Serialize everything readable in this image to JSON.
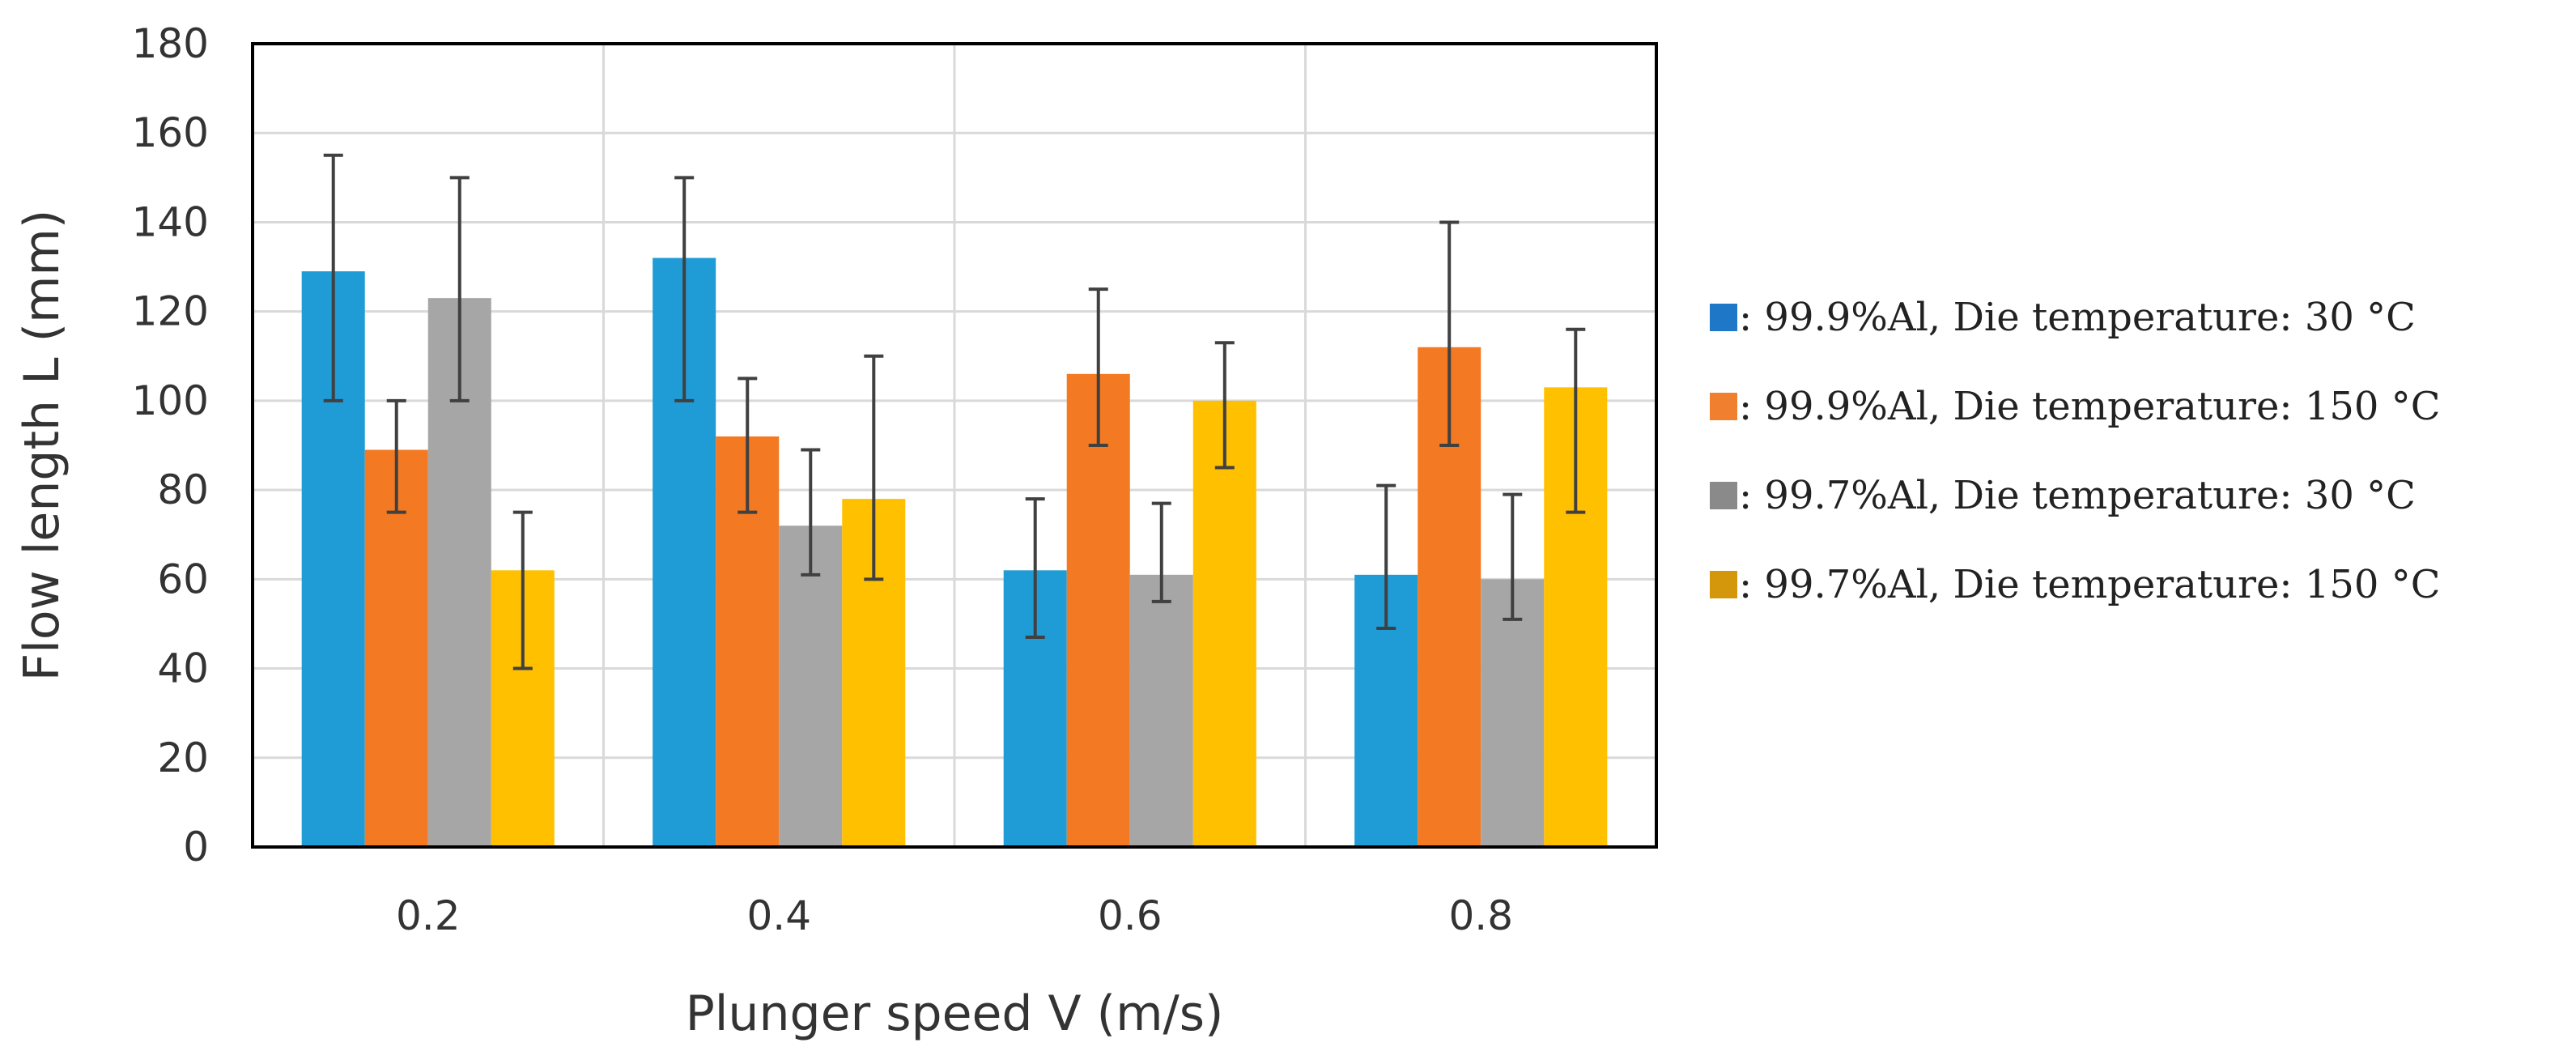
{
  "chart_data": {
    "type": "bar",
    "title": "",
    "xlabel": "Plunger speed V (m/s)",
    "ylabel": "Flow length L (mm)",
    "ylim": [
      0,
      180
    ],
    "yticks": [
      0,
      20,
      40,
      60,
      80,
      100,
      120,
      140,
      160,
      180
    ],
    "categories": [
      "0.2",
      "0.4",
      "0.6",
      "0.8"
    ],
    "grid": true,
    "legend_position": "right",
    "series": [
      {
        "name": ": 99.9%Al, Die temperature: 30 °C",
        "legend_marker_color": "#1f77c8",
        "color": "#1f9bd6",
        "values": [
          129,
          132,
          62,
          61
        ],
        "error_low": [
          100,
          100,
          47,
          49
        ],
        "error_high": [
          155,
          150,
          78,
          81
        ]
      },
      {
        "name": ": 99.9%Al, Die temperature: 150 °C",
        "legend_marker_color": "#f08030",
        "color": "#f37a22",
        "values": [
          89,
          92,
          106,
          112
        ],
        "error_low": [
          75,
          75,
          90,
          90
        ],
        "error_high": [
          100,
          105,
          125,
          140
        ]
      },
      {
        "name": ": 99.7%Al, Die temperature: 30 °C",
        "legend_marker_color": "#8a8a8a",
        "color": "#a6a6a6",
        "values": [
          123,
          72,
          61,
          60
        ],
        "error_low": [
          100,
          61,
          55,
          51
        ],
        "error_high": [
          150,
          89,
          77,
          79
        ]
      },
      {
        "name": ": 99.7%Al, Die temperature: 150 °C",
        "legend_marker_color": "#d4960a",
        "color": "#ffc000",
        "values": [
          62,
          78,
          100,
          103
        ],
        "error_low": [
          40,
          60,
          85,
          75
        ],
        "error_high": [
          75,
          110,
          113,
          116
        ]
      }
    ]
  }
}
